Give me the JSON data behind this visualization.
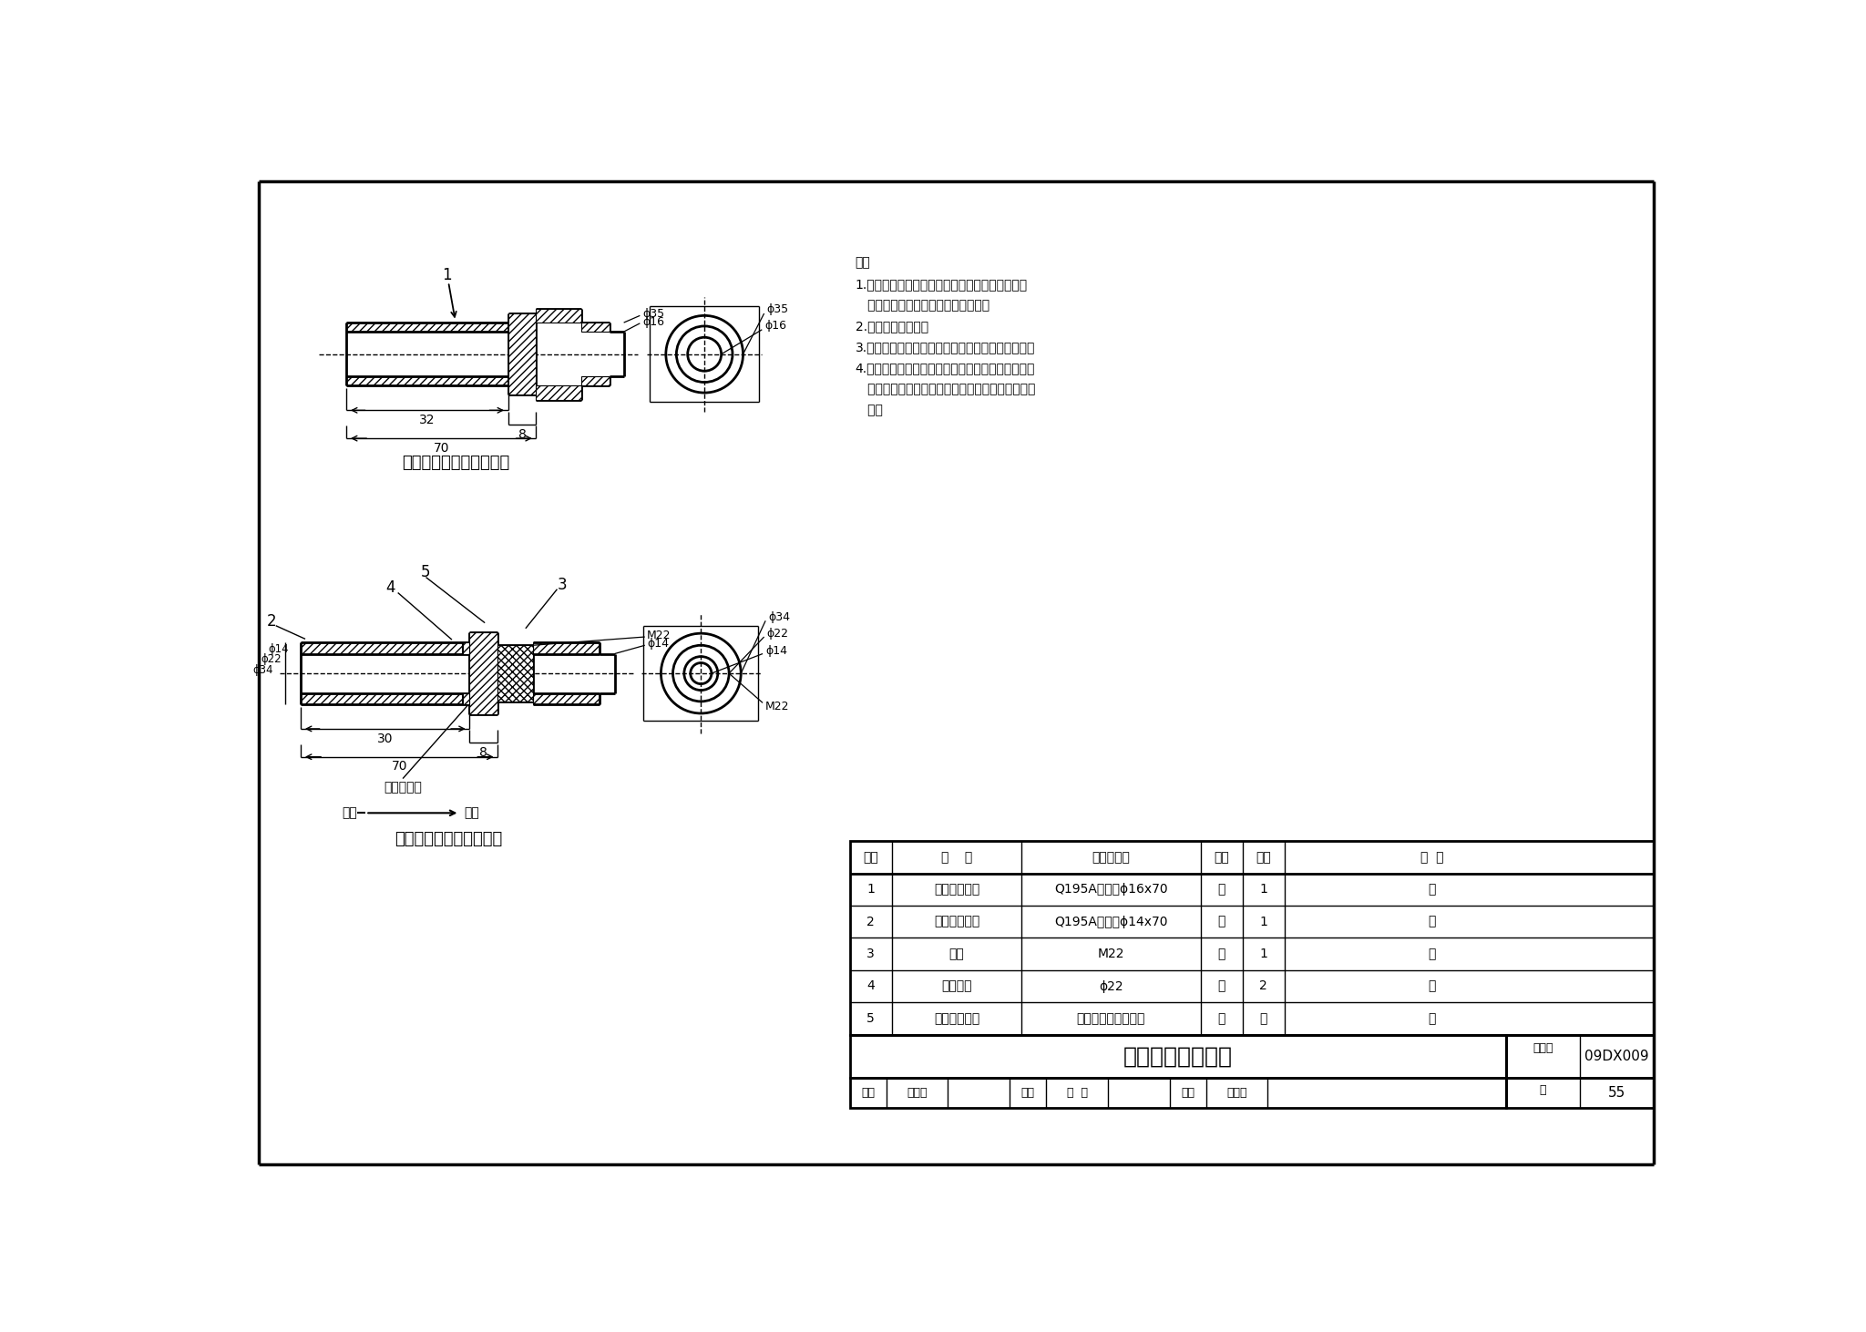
{
  "title": "光纤波导管结构图",
  "atlas_no": "09DX009",
  "page": "55",
  "bg": "#ffffff",
  "top_label": "光纤波导管（焊接固定）",
  "bottom_label": "光纤波导管（螺母固定）",
  "notes_title": "注：",
  "notes": [
    "1.电磁屏蔽壁板开安装孔后，去毛刺、倒角，除去",
    "   孔周围的防腐层并用酒精清洗干净。",
    "2.波导管表面镀铜。",
    "3.波导管（焊接固定）需与电磁屏蔽壁板严密焊接。",
    "4.波导管（螺母固定）的导电衬垫需用酒精清洗，除",
    "   去油污；螺母与波导管连接时，要拧紧，以防止泄",
    "   漏。"
  ],
  "table_headers": [
    "序号",
    "名    称",
    "型号及规格",
    "单位",
    "数量",
    "备  注"
  ],
  "table_col_widths": [
    60,
    185,
    255,
    60,
    60,
    420
  ],
  "table_rows": [
    [
      "1",
      "波导管（一）",
      "Q195A号钢，ϕ16x70",
      "个",
      "1",
      "－"
    ],
    [
      "2",
      "波导管（二）",
      "Q195A号钢，ϕ14x70",
      "个",
      "1",
      "－"
    ],
    [
      "3",
      "螺母",
      "M22",
      "个",
      "1",
      "－"
    ],
    [
      "4",
      "导电衬垫",
      "ϕ22",
      "个",
      "2",
      "－"
    ],
    [
      "5",
      "电磁屏蔽壁板",
      "由具体工程设计确定",
      "－",
      "－",
      "－"
    ]
  ],
  "sig_labels": [
    "审核",
    "钟景华",
    "",
    "校对",
    "孙  兰",
    "",
    "设计",
    "曹启兰",
    ""
  ],
  "sig_widths": [
    52,
    88,
    88,
    52,
    88,
    88,
    52,
    88,
    84
  ],
  "page_label": "页",
  "page_no": "55"
}
